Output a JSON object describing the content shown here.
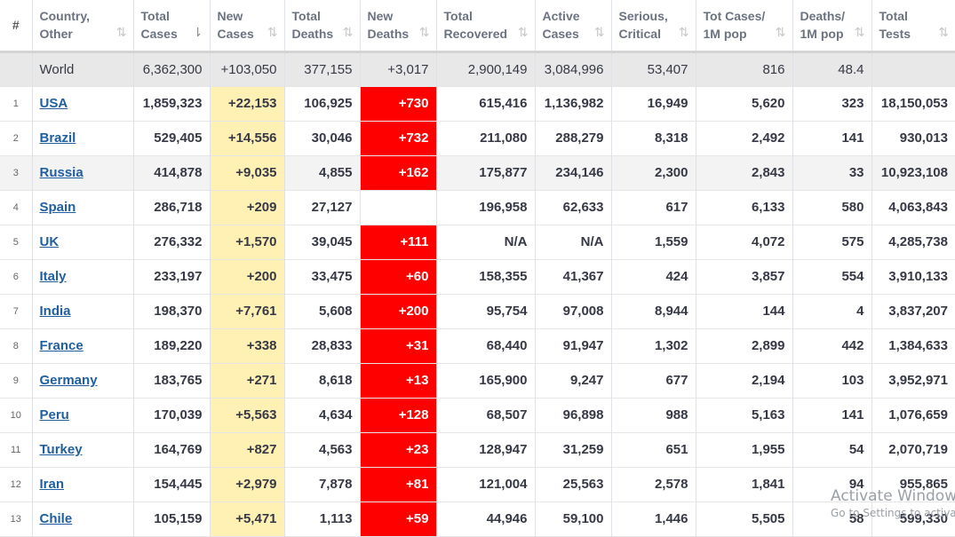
{
  "columns": [
    {
      "key": "rank",
      "line1": "#",
      "line2": ""
    },
    {
      "key": "country",
      "line1": "Country,",
      "line2": "Other"
    },
    {
      "key": "total_cases",
      "line1": "Total",
      "line2": "Cases"
    },
    {
      "key": "new_cases",
      "line1": "New",
      "line2": "Cases"
    },
    {
      "key": "total_deaths",
      "line1": "Total",
      "line2": "Deaths"
    },
    {
      "key": "new_deaths",
      "line1": "New",
      "line2": "Deaths"
    },
    {
      "key": "total_recovered",
      "line1": "Total",
      "line2": "Recovered"
    },
    {
      "key": "active_cases",
      "line1": "Active",
      "line2": "Cases"
    },
    {
      "key": "serious_critical",
      "line1": "Serious,",
      "line2": "Critical"
    },
    {
      "key": "tot_cases_1m",
      "line1": "Tot Cases/",
      "line2": "1M pop"
    },
    {
      "key": "deaths_1m",
      "line1": "Deaths/",
      "line2": "1M pop"
    },
    {
      "key": "total_tests",
      "line1": "Total",
      "line2": "Tests"
    }
  ],
  "sort_icons": {
    "default": "⇅",
    "active": "⇂",
    "active_column": "total_cases"
  },
  "world": {
    "country": "World",
    "total_cases": "6,362,300",
    "new_cases": "+103,050",
    "total_deaths": "377,155",
    "new_deaths": "+3,017",
    "total_recovered": "2,900,149",
    "active_cases": "3,084,996",
    "serious_critical": "53,407",
    "tot_cases_1m": "816",
    "deaths_1m": "48.4",
    "total_tests": ""
  },
  "rows": [
    {
      "rank": "1",
      "country": "USA",
      "total_cases": "1,859,323",
      "new_cases": "+22,153",
      "total_deaths": "106,925",
      "new_deaths": "+730",
      "total_recovered": "615,416",
      "active_cases": "1,136,982",
      "serious_critical": "16,949",
      "tot_cases_1m": "5,620",
      "deaths_1m": "323",
      "total_tests": "18,150,053"
    },
    {
      "rank": "2",
      "country": "Brazil",
      "total_cases": "529,405",
      "new_cases": "+14,556",
      "total_deaths": "30,046",
      "new_deaths": "+732",
      "total_recovered": "211,080",
      "active_cases": "288,279",
      "serious_critical": "8,318",
      "tot_cases_1m": "2,492",
      "deaths_1m": "141",
      "total_tests": "930,013"
    },
    {
      "rank": "3",
      "country": "Russia",
      "total_cases": "414,878",
      "new_cases": "+9,035",
      "total_deaths": "4,855",
      "new_deaths": "+162",
      "total_recovered": "175,877",
      "active_cases": "234,146",
      "serious_critical": "2,300",
      "tot_cases_1m": "2,843",
      "deaths_1m": "33",
      "total_tests": "10,923,108"
    },
    {
      "rank": "4",
      "country": "Spain",
      "total_cases": "286,718",
      "new_cases": "+209",
      "total_deaths": "27,127",
      "new_deaths": "",
      "total_recovered": "196,958",
      "active_cases": "62,633",
      "serious_critical": "617",
      "tot_cases_1m": "6,133",
      "deaths_1m": "580",
      "total_tests": "4,063,843"
    },
    {
      "rank": "5",
      "country": "UK",
      "total_cases": "276,332",
      "new_cases": "+1,570",
      "total_deaths": "39,045",
      "new_deaths": "+111",
      "total_recovered": "N/A",
      "active_cases": "N/A",
      "serious_critical": "1,559",
      "tot_cases_1m": "4,072",
      "deaths_1m": "575",
      "total_tests": "4,285,738"
    },
    {
      "rank": "6",
      "country": "Italy",
      "total_cases": "233,197",
      "new_cases": "+200",
      "total_deaths": "33,475",
      "new_deaths": "+60",
      "total_recovered": "158,355",
      "active_cases": "41,367",
      "serious_critical": "424",
      "tot_cases_1m": "3,857",
      "deaths_1m": "554",
      "total_tests": "3,910,133"
    },
    {
      "rank": "7",
      "country": "India",
      "total_cases": "198,370",
      "new_cases": "+7,761",
      "total_deaths": "5,608",
      "new_deaths": "+200",
      "total_recovered": "95,754",
      "active_cases": "97,008",
      "serious_critical": "8,944",
      "tot_cases_1m": "144",
      "deaths_1m": "4",
      "total_tests": "3,837,207"
    },
    {
      "rank": "8",
      "country": "France",
      "total_cases": "189,220",
      "new_cases": "+338",
      "total_deaths": "28,833",
      "new_deaths": "+31",
      "total_recovered": "68,440",
      "active_cases": "91,947",
      "serious_critical": "1,302",
      "tot_cases_1m": "2,899",
      "deaths_1m": "442",
      "total_tests": "1,384,633"
    },
    {
      "rank": "9",
      "country": "Germany",
      "total_cases": "183,765",
      "new_cases": "+271",
      "total_deaths": "8,618",
      "new_deaths": "+13",
      "total_recovered": "165,900",
      "active_cases": "9,247",
      "serious_critical": "677",
      "tot_cases_1m": "2,194",
      "deaths_1m": "103",
      "total_tests": "3,952,971"
    },
    {
      "rank": "10",
      "country": "Peru",
      "total_cases": "170,039",
      "new_cases": "+5,563",
      "total_deaths": "4,634",
      "new_deaths": "+128",
      "total_recovered": "68,507",
      "active_cases": "96,898",
      "serious_critical": "988",
      "tot_cases_1m": "5,163",
      "deaths_1m": "141",
      "total_tests": "1,076,659"
    },
    {
      "rank": "11",
      "country": "Turkey",
      "total_cases": "164,769",
      "new_cases": "+827",
      "total_deaths": "4,563",
      "new_deaths": "+23",
      "total_recovered": "128,947",
      "active_cases": "31,259",
      "serious_critical": "651",
      "tot_cases_1m": "1,955",
      "deaths_1m": "54",
      "total_tests": "2,070,719"
    },
    {
      "rank": "12",
      "country": "Iran",
      "total_cases": "154,445",
      "new_cases": "+2,979",
      "total_deaths": "7,878",
      "new_deaths": "+81",
      "total_recovered": "121,004",
      "active_cases": "25,563",
      "serious_critical": "2,578",
      "tot_cases_1m": "1,841",
      "deaths_1m": "94",
      "total_tests": "955,865"
    },
    {
      "rank": "13",
      "country": "Chile",
      "total_cases": "105,159",
      "new_cases": "+5,471",
      "total_deaths": "1,113",
      "new_deaths": "+59",
      "total_recovered": "44,946",
      "active_cases": "59,100",
      "serious_critical": "1,446",
      "tot_cases_1m": "5,505",
      "deaths_1m": "58",
      "total_tests": "599,330"
    }
  ],
  "watermark": {
    "line1": "Activate Windows",
    "line2": "Go to Settings to activate Windows."
  },
  "colors": {
    "new_cases_bg": "#fff0b3",
    "new_deaths_bg": "#ff0000",
    "link": "#1f5fa0",
    "world_bg": "#e8e8e8"
  }
}
